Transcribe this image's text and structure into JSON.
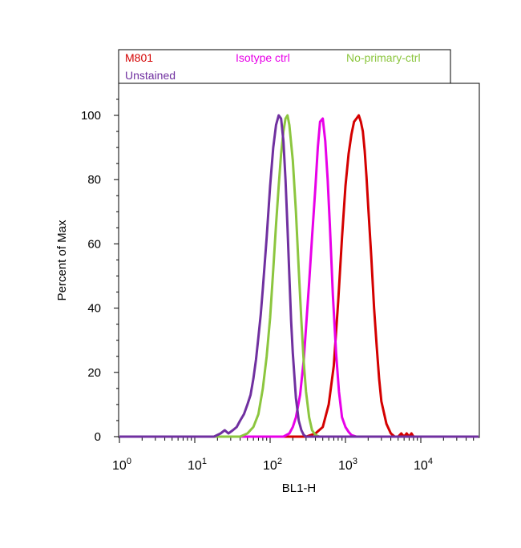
{
  "chart_data": {
    "type": "line",
    "xlabel": "BL1-H",
    "ylabel": "Percent of Max",
    "x_scale": "log",
    "xlim": [
      1,
      60000
    ],
    "ylim": [
      0,
      110
    ],
    "x_ticks": [
      {
        "value": 1,
        "base": "10",
        "exp": "0"
      },
      {
        "value": 10,
        "base": "10",
        "exp": "1"
      },
      {
        "value": 100,
        "base": "10",
        "exp": "2"
      },
      {
        "value": 1000,
        "base": "10",
        "exp": "3"
      },
      {
        "value": 10000,
        "base": "10",
        "exp": "4"
      }
    ],
    "y_ticks": [
      0,
      20,
      40,
      60,
      80,
      100
    ],
    "grid": false,
    "legend_position": "top",
    "series": [
      {
        "name": "M801",
        "color": "#d40000",
        "x": [
          1,
          300,
          400,
          500,
          600,
          700,
          800,
          900,
          1000,
          1100,
          1200,
          1300,
          1400,
          1500,
          1600,
          1700,
          1800,
          1900,
          2000,
          2200,
          2400,
          2600,
          2800,
          3000,
          3500,
          4000,
          4500,
          5000,
          5500,
          6000,
          6500,
          7000,
          7500,
          8000,
          9000,
          60000
        ],
        "y": [
          0,
          0,
          1,
          3,
          10,
          22,
          42,
          62,
          78,
          88,
          94,
          98,
          99,
          100,
          98,
          95,
          89,
          81,
          72,
          56,
          40,
          28,
          18,
          11,
          4,
          1,
          0,
          0,
          1,
          0,
          1,
          0,
          1,
          0,
          0,
          0
        ]
      },
      {
        "name": "Isotype ctrl",
        "color": "#e800e8",
        "x": [
          1,
          150,
          180,
          200,
          220,
          250,
          280,
          300,
          330,
          360,
          400,
          430,
          460,
          500,
          540,
          580,
          620,
          680,
          750,
          820,
          900,
          1000,
          1100,
          1200,
          1400,
          1700,
          60000
        ],
        "y": [
          0,
          0,
          1,
          3,
          6,
          13,
          24,
          34,
          48,
          62,
          78,
          90,
          98,
          99,
          92,
          80,
          66,
          44,
          26,
          14,
          6,
          3,
          1.5,
          0.5,
          0,
          0,
          0
        ]
      },
      {
        "name": "No-primary-ctrl",
        "color": "#8cc63f",
        "x": [
          1,
          40,
          50,
          60,
          70,
          80,
          90,
          100,
          110,
          120,
          130,
          140,
          150,
          160,
          170,
          180,
          200,
          220,
          240,
          260,
          280,
          300,
          330,
          360,
          400,
          450,
          500,
          60000
        ],
        "y": [
          0,
          0,
          1,
          3,
          7,
          15,
          25,
          37,
          52,
          66,
          78,
          88,
          95,
          99,
          100,
          97,
          86,
          70,
          52,
          36,
          23,
          14,
          6,
          2,
          0.5,
          0,
          0,
          0
        ]
      },
      {
        "name": "Unstained",
        "color": "#7030a0",
        "x": [
          1,
          18,
          22,
          25,
          28,
          32,
          36,
          40,
          45,
          50,
          55,
          60,
          65,
          70,
          75,
          80,
          90,
          100,
          110,
          120,
          130,
          140,
          150,
          160,
          170,
          180,
          190,
          200,
          220,
          240,
          260,
          280,
          300,
          60000
        ],
        "y": [
          0,
          0,
          1,
          2,
          1,
          2,
          3,
          5,
          7,
          10,
          13,
          18,
          24,
          31,
          38,
          46,
          62,
          78,
          90,
          97,
          100,
          99,
          92,
          80,
          65,
          50,
          36,
          26,
          12,
          5,
          2,
          0.5,
          0,
          0
        ]
      }
    ]
  }
}
